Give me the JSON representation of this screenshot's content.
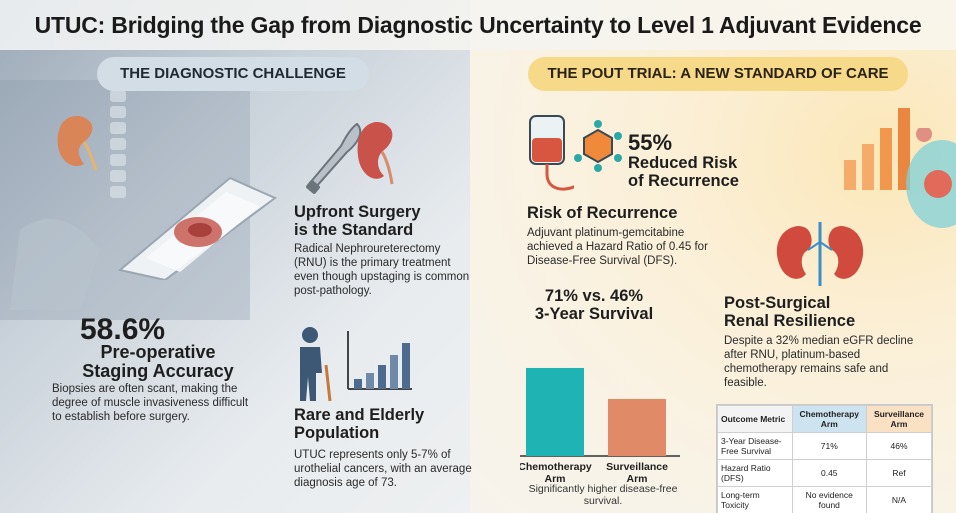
{
  "title": "UTUC: Bridging the Gap from Diagnostic Uncertainty to Level 1 Adjuvant Evidence",
  "left": {
    "pill": "THE DIAGNOSTIC CHALLENGE",
    "stat": {
      "value": "58.6%",
      "label_line1": "Pre-operative",
      "label_line2": "Staging Accuracy",
      "body": "Biopsies are often scant, making the degree of muscle invasiveness difficult to establish before surgery."
    },
    "upfront": {
      "heading_line1": "Upfront Surgery",
      "heading_line2": "is the Standard",
      "body": "Radical Nephroureterectomy (RNU) is the primary treatment even though upstaging is common post-pathology."
    },
    "rare": {
      "heading_line1": "Rare and Elderly",
      "heading_line2": "Population",
      "body": "UTUC represents only 5-7% of urothelial cancers, with an average diagnosis age of 73."
    }
  },
  "right": {
    "pill": "THE POUT TRIAL: A NEW STANDARD OF CARE",
    "stat": {
      "value": "55%",
      "label_line1": "Reduced Risk",
      "label_line2": "of Recurrence"
    },
    "risk": {
      "heading": "Risk of Recurrence",
      "body": "Adjuvant platinum-gemcitabine achieved a Hazard Ratio of 0.45 for Disease-Free Survival (DFS)."
    },
    "survival": {
      "line1": "71% vs. 46%",
      "line2": "3-Year Survival"
    },
    "renal": {
      "heading_line1": "Post-Surgical",
      "heading_line2": "Renal Resilience",
      "body": "Despite a 32% median eGFR decline after RNU, platinum-based chemotherapy remains safe and feasible."
    },
    "chart_caption": "Significantly higher disease-free survival."
  },
  "chart_data": {
    "type": "bar",
    "categories": [
      "Chemotherapy Arm",
      "Surveillance Arm"
    ],
    "values": [
      71,
      46
    ],
    "colors": [
      "#1fb3b3",
      "#e08a68"
    ],
    "ylim": [
      0,
      100
    ]
  },
  "table": {
    "headers": [
      "Outcome Metric",
      "Chemotherapy Arm",
      "Surveillance Arm"
    ],
    "rows": [
      [
        "3-Year Disease-Free Survival",
        "71%",
        "46%"
      ],
      [
        "Hazard Ratio (DFS)",
        "0.45",
        "Ref"
      ],
      [
        "Long-term Toxicity",
        "No evidence found",
        "N/A"
      ]
    ]
  },
  "colors": {
    "teal": "#1fb3b3",
    "coral": "#e08a68",
    "pill_left": "#d3dde5",
    "pill_right": "#f7d98a"
  },
  "icons": [
    "kidney-icon",
    "scalpel-icon",
    "pathology-slide-icon",
    "elderly-person-icon",
    "bar-growth-icon",
    "iv-bag-icon",
    "molecule-icon",
    "kidneys-icon",
    "cell-icon"
  ]
}
